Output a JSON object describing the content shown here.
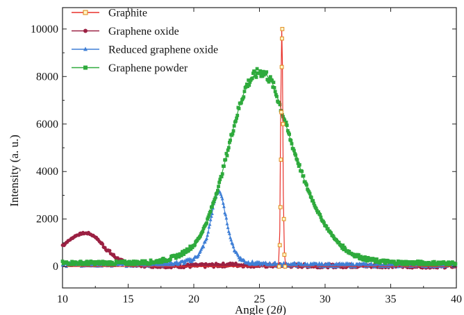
{
  "chart_data": {
    "type": "line",
    "xlabel": "Angle (2θ)",
    "xlabel_prefix": "Angle (2",
    "xlabel_theta": "θ",
    "xlabel_suffix": ")",
    "ylabel": "Intensity (a. u.)",
    "xlim": [
      10,
      40
    ],
    "ylim": [
      -900,
      10900
    ],
    "x_ticks": [
      10,
      15,
      20,
      25,
      30,
      35,
      40
    ],
    "y_ticks": [
      0,
      2000,
      4000,
      6000,
      8000,
      10000
    ],
    "legend_position": "top-left",
    "series": [
      {
        "name": "Graphite",
        "color": "#e8312a",
        "marker": "square",
        "x": [
          10,
          26.45,
          26.55,
          26.62,
          26.7,
          26.75,
          26.82,
          26.9,
          27.0,
          40
        ],
        "y": [
          0,
          0,
          1500,
          6500,
          10000,
          8500,
          3000,
          600,
          0,
          0
        ]
      },
      {
        "name": "Graphene oxide",
        "color": "#9b2143",
        "marker": "circle",
        "x": [
          10,
          10.5,
          11,
          11.5,
          12,
          12.5,
          13,
          13.5,
          14,
          14.5,
          15,
          16,
          17,
          18,
          19,
          20,
          21,
          22,
          23,
          24,
          25,
          26,
          27,
          28,
          29,
          30,
          31,
          32,
          33,
          34,
          35,
          36,
          37,
          38,
          39,
          40
        ],
        "y": [
          900,
          1100,
          1300,
          1400,
          1400,
          1250,
          950,
          650,
          400,
          220,
          120,
          60,
          40,
          30,
          30,
          30,
          40,
          60,
          80,
          60,
          50,
          40,
          40,
          40,
          30,
          30,
          30,
          30,
          30,
          30,
          30,
          20,
          20,
          20,
          20,
          20
        ]
      },
      {
        "name": "Reduced graphene oxide",
        "color": "#3f7fd6",
        "marker": "triangle",
        "x": [
          10,
          15,
          18,
          19,
          20,
          20.5,
          21,
          21.3,
          21.6,
          21.9,
          22.1,
          22.4,
          22.7,
          23,
          23.5,
          24,
          25,
          27,
          30,
          35,
          40
        ],
        "y": [
          80,
          80,
          100,
          150,
          300,
          600,
          1200,
          2000,
          2800,
          3250,
          3000,
          2200,
          1400,
          800,
          350,
          180,
          100,
          80,
          60,
          60,
          60
        ]
      },
      {
        "name": "Graphene powder",
        "color": "#2eaa3c",
        "marker": "square",
        "x": [
          10,
          12,
          14,
          16,
          17,
          18,
          19,
          20,
          20.5,
          21,
          21.5,
          22,
          22.5,
          23,
          23.5,
          24,
          24.5,
          25,
          25.5,
          26,
          26.5,
          27,
          27.5,
          28,
          28.5,
          29,
          29.5,
          30,
          30.5,
          31,
          31.5,
          32,
          33,
          34,
          35,
          36,
          37,
          38,
          40
        ],
        "y": [
          150,
          150,
          150,
          170,
          200,
          300,
          500,
          900,
          1300,
          1900,
          2700,
          3600,
          4700,
          5800,
          6800,
          7600,
          8000,
          8200,
          8100,
          7700,
          6900,
          6000,
          5100,
          4300,
          3500,
          2850,
          2250,
          1750,
          1350,
          1000,
          750,
          550,
          330,
          230,
          180,
          160,
          150,
          140,
          130
        ]
      }
    ]
  }
}
